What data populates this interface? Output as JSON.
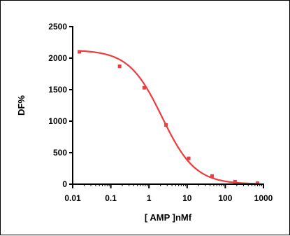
{
  "chart_data": {
    "type": "line",
    "title": "",
    "xlabel": "[ AMP ]nMf",
    "ylabel": "DF%",
    "x_scale": "log",
    "xlim": [
      0.01,
      1000
    ],
    "ylim": [
      0,
      2500
    ],
    "x_ticks": [
      0.01,
      0.1,
      1,
      10,
      100,
      1000
    ],
    "x_tick_labels": [
      "0.01",
      "0.1",
      "1",
      "10",
      "100",
      "1000"
    ],
    "y_ticks": [
      0,
      500,
      1000,
      1500,
      2000,
      2500
    ],
    "y_tick_labels": [
      "0",
      "500",
      "1000",
      "1500",
      "2000",
      "2500"
    ],
    "grid": false,
    "legend": "none",
    "colors": {
      "series": "#ef3b3b"
    },
    "series": [
      {
        "points": [
          {
            "x": 0.015,
            "y": 2100
          },
          {
            "x": 0.17,
            "y": 1870
          },
          {
            "x": 0.75,
            "y": 1530
          },
          {
            "x": 2.8,
            "y": 940
          },
          {
            "x": 11,
            "y": 410
          },
          {
            "x": 45,
            "y": 130
          },
          {
            "x": 180,
            "y": 40
          },
          {
            "x": 700,
            "y": 15
          }
        ],
        "fit": {
          "model": "four-parameter logistic",
          "top": 2130,
          "bottom": 0,
          "ec50": 2.2,
          "hill": 1.0
        }
      }
    ]
  }
}
